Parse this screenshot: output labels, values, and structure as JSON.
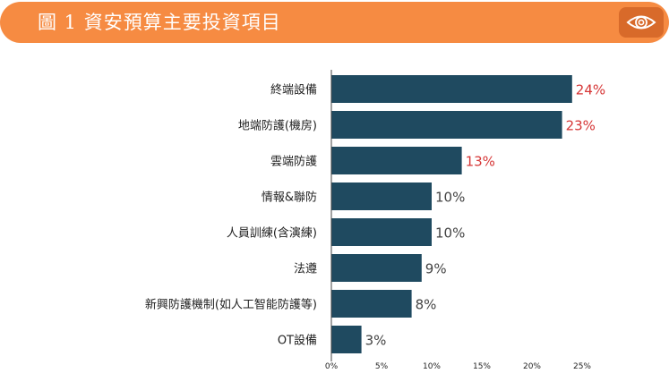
{
  "header": {
    "title": "圖 1 資安預算主要投資項目",
    "icon": "eye-icon",
    "background": "#f68b42",
    "icon_background": "#d86a2a"
  },
  "chart_data": {
    "type": "bar",
    "orientation": "horizontal",
    "title": "圖 1 資安預算主要投資項目",
    "categories": [
      "終端設備",
      "地端防護(機房)",
      "雲端防護",
      "情報&聯防",
      "人員訓練(含演練)",
      "法遵",
      "新興防護機制(如人工智能防護等)",
      "OT設備"
    ],
    "values": [
      24,
      23,
      13,
      10,
      10,
      9,
      8,
      3
    ],
    "value_labels": [
      "24%",
      "23%",
      "13%",
      "10%",
      "10%",
      "9%",
      "8%",
      "3%"
    ],
    "xlim": [
      0,
      25
    ],
    "xticks": [
      "0%",
      "5%",
      "10%",
      "15%",
      "20%",
      "25%"
    ],
    "xtick_values": [
      0,
      5,
      10,
      15,
      20,
      25
    ],
    "grid": false,
    "bar_color": "#1f4a60",
    "highlight_color": "#d63636",
    "label_color": "#444444",
    "highlight_count": 3
  }
}
